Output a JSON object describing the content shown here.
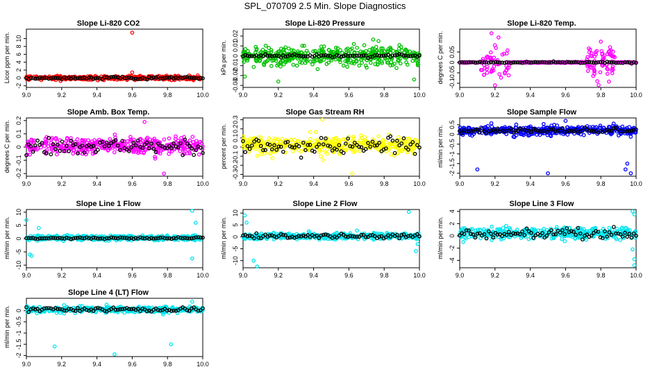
{
  "title": "SPL_070709  2.5 Min. Slope Diagnostics",
  "chart_data": [
    {
      "type": "scatter",
      "title": "Slope Li-820 CO2",
      "ylabel": "Licor ppm per min.",
      "xlim": [
        9.0,
        10.0
      ],
      "ylim": [
        -2.4,
        12.4
      ],
      "yticks": [
        -2,
        0,
        2,
        4,
        6,
        8,
        10
      ],
      "xticks": [
        "9.0",
        "9.2",
        "9.4",
        "9.6",
        "9.8",
        "10.0"
      ],
      "color": "#ff0000",
      "center": 0,
      "spread": 0.45,
      "subCenter": 0,
      "subSpread": 0.3,
      "outliers": [
        [
          9.6,
          11.5
        ],
        [
          9.6,
          1.4
        ]
      ]
    },
    {
      "type": "scatter",
      "title": "Slope Li-820 Pressure",
      "ylabel": "kPa per min.",
      "xlim": [
        9.0,
        10.0
      ],
      "ylim": [
        -0.032,
        0.027
      ],
      "yticks": [
        -0.03,
        -0.02,
        -0.01,
        0.0,
        0.01,
        0.02
      ],
      "xticks": [
        "9.0",
        "9.2",
        "9.4",
        "9.6",
        "9.8",
        "10.0"
      ],
      "color": "#00c000",
      "center": 0,
      "spread": 0.009,
      "subCenter": 0,
      "subSpread": 0.0012,
      "outliers": [
        [
          9.2,
          -0.026
        ],
        [
          9.97,
          -0.024
        ],
        [
          9.01,
          -0.021
        ]
      ]
    },
    {
      "type": "scatter",
      "title": "Slope Li-820 Temp.",
      "ylabel": "degrees C per min.",
      "xlim": [
        9.0,
        10.0
      ],
      "ylim": [
        -0.12,
        0.16
      ],
      "yticks": [
        -0.1,
        -0.05,
        0.0,
        0.05
      ],
      "xticks": [
        "9.0",
        "9.2",
        "9.4",
        "9.6",
        "9.8",
        "10.0"
      ],
      "color": "#ff00ff",
      "center": 0,
      "spread": 0.004,
      "subCenter": 0,
      "subSpread": 0.003,
      "outliers": [
        [
          9.18,
          0.14
        ],
        [
          9.22,
          0.12
        ],
        [
          9.2,
          -0.11
        ],
        [
          9.78,
          -0.09
        ],
        [
          9.8,
          0.1
        ]
      ]
    },
    {
      "type": "scatter",
      "title": "Slope Amb. Box Temp.",
      "ylabel": "degrees C per min.",
      "xlim": [
        9.0,
        10.0
      ],
      "ylim": [
        -0.22,
        0.22
      ],
      "yticks": [
        -0.2,
        -0.1,
        0.0,
        0.1,
        0.2
      ],
      "xticks": [
        "9.0",
        "9.2",
        "9.4",
        "9.6",
        "9.8",
        "10.0"
      ],
      "color": "#ff00ff",
      "center": 0.01,
      "spread": 0.06,
      "subCenter": 0.01,
      "subSpread": 0.05,
      "outliers": [
        [
          9.78,
          -0.2
        ],
        [
          9.67,
          0.19
        ]
      ]
    },
    {
      "type": "scatter",
      "title": "Slope Gas Stream RH",
      "ylabel": "percent per min.",
      "xlim": [
        9.0,
        10.0
      ],
      "ylim": [
        -0.32,
        0.32
      ],
      "yticks": [
        -0.3,
        -0.2,
        -0.1,
        0.0,
        0.1,
        0.2,
        0.3
      ],
      "xticks": [
        "9.0",
        "9.2",
        "9.4",
        "9.6",
        "9.8",
        "10.0"
      ],
      "color": "#ffff00",
      "center": 0.02,
      "spread": 0.09,
      "subCenter": 0.01,
      "subSpread": 0.08,
      "outliers": [
        [
          9.45,
          0.3
        ],
        [
          9.62,
          -0.29
        ]
      ]
    },
    {
      "type": "scatter",
      "title": "Slope Sample Flow",
      "ylabel": "ml/min per min.",
      "xlim": [
        9.0,
        10.0
      ],
      "ylim": [
        -2.15,
        0.85
      ],
      "yticks": [
        -2.0,
        -1.5,
        -1.0,
        -0.5,
        0.0,
        0.5
      ],
      "xticks": [
        "9.0",
        "9.2",
        "9.4",
        "9.6",
        "9.8",
        "10.0"
      ],
      "color": "#0000ff",
      "center": 0.2,
      "spread": 0.2,
      "subCenter": 0.2,
      "subSpread": 0.1,
      "outliers": [
        [
          9.1,
          -1.8
        ],
        [
          9.5,
          -2.0
        ],
        [
          9.94,
          -1.8
        ],
        [
          9.97,
          -2.0
        ],
        [
          9.95,
          -1.5
        ],
        [
          9.6,
          0.7
        ]
      ]
    },
    {
      "type": "scatter",
      "title": "Slope Line 1 Flow",
      "ylabel": "ml/min per min.",
      "xlim": [
        9.0,
        10.0
      ],
      "ylim": [
        -11,
        11
      ],
      "yticks": [
        -10,
        -5,
        0,
        5,
        10
      ],
      "xticks": [
        "9.0",
        "9.2",
        "9.4",
        "9.6",
        "9.8",
        "10.0"
      ],
      "color": "#00e5ee",
      "center": 0.3,
      "spread": 0.8,
      "subCenter": 0.2,
      "subSpread": 0.3,
      "outliers": [
        [
          9.02,
          -6
        ],
        [
          9.03,
          -6.5
        ],
        [
          9.0,
          7
        ],
        [
          9.94,
          10.5
        ],
        [
          9.94,
          -7.5
        ],
        [
          9.96,
          6
        ],
        [
          9.07,
          4
        ]
      ]
    },
    {
      "type": "scatter",
      "title": "Slope Line 2 Flow",
      "ylabel": "ml/min per min.",
      "xlim": [
        9.0,
        10.0
      ],
      "ylim": [
        -13,
        11.5
      ],
      "yticks": [
        -10,
        -5,
        0,
        5,
        10
      ],
      "xticks": [
        "9.0",
        "9.2",
        "9.4",
        "9.6",
        "9.8",
        "10.0"
      ],
      "color": "#00e5ee",
      "center": 0.3,
      "spread": 1.2,
      "subCenter": 0.3,
      "subSpread": 0.7,
      "outliers": [
        [
          9.01,
          9
        ],
        [
          9.02,
          6
        ],
        [
          9.06,
          -10
        ],
        [
          9.08,
          -12.5
        ],
        [
          9.94,
          10.5
        ],
        [
          9.98,
          -6
        ],
        [
          9.99,
          -3
        ]
      ]
    },
    {
      "type": "scatter",
      "title": "Slope Line 3 Flow",
      "ylabel": "ml/min per min.",
      "xlim": [
        9.0,
        10.0
      ],
      "ylim": [
        -5.2,
        4.3
      ],
      "yticks": [
        -4,
        -2,
        0,
        2,
        4
      ],
      "xticks": [
        "9.0",
        "9.2",
        "9.4",
        "9.6",
        "9.8",
        "10.0"
      ],
      "color": "#00e5ee",
      "center": 0.4,
      "spread": 0.8,
      "subCenter": 0.3,
      "subSpread": 0.6,
      "outliers": [
        [
          9.99,
          -4.8
        ],
        [
          9.99,
          -3.8
        ],
        [
          9.98,
          -2.2
        ],
        [
          9.99,
          3.5
        ],
        [
          9.98,
          4.0
        ],
        [
          9.02,
          -1.0
        ]
      ]
    },
    {
      "type": "scatter",
      "title": "Slope Line 4 (LT) Flow",
      "ylabel": "ml/min per min.",
      "xlim": [
        9.0,
        10.0
      ],
      "ylim": [
        -2.05,
        0.55
      ],
      "yticks": [
        -2.0,
        -1.5,
        -1.0,
        -0.5,
        0.0
      ],
      "xticks": [
        "9.0",
        "9.2",
        "9.4",
        "9.6",
        "9.8",
        "10.0"
      ],
      "color": "#00e5ee",
      "center": 0.05,
      "spread": 0.12,
      "subCenter": 0.05,
      "subSpread": 0.08,
      "outliers": [
        [
          9.16,
          -1.6
        ],
        [
          9.5,
          -1.95
        ],
        [
          9.82,
          -1.5
        ],
        [
          9.94,
          0.4
        ]
      ]
    }
  ]
}
